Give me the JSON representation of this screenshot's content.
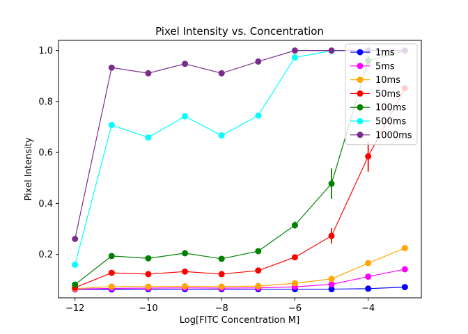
{
  "chart_data": {
    "type": "line",
    "title": "Pixel Intensity vs. Concentration",
    "xlabel": "Log[FITC Concentration M]",
    "ylabel": "Pixel Intensity",
    "xlim": [
      -12.45,
      -2.55
    ],
    "ylim": [
      0.03,
      1.04
    ],
    "xticks": [
      -12,
      -10,
      -8,
      -6,
      -4
    ],
    "yticks": [
      0.2,
      0.4,
      0.6,
      0.8,
      1.0
    ],
    "xtick_labels": [
      "−12",
      "−10",
      "−8",
      "−6",
      "−4"
    ],
    "ytick_labels": [
      "0.2",
      "0.4",
      "0.6",
      "0.8",
      "1.0"
    ],
    "grid": false,
    "legend_position": "top-right",
    "x": [
      -12,
      -11,
      -10,
      -9,
      -8,
      -7,
      -6,
      -5,
      -4,
      -3
    ],
    "series": [
      {
        "name": "1ms",
        "color": "#0000ff",
        "values": [
          0.063,
          0.063,
          0.064,
          0.064,
          0.064,
          0.064,
          0.064,
          0.064,
          0.066,
          0.072
        ],
        "errors": [
          0.002,
          0.002,
          0.002,
          0.002,
          0.002,
          0.002,
          0.002,
          0.002,
          0.002,
          0.003
        ]
      },
      {
        "name": "5ms",
        "color": "#ff00ff",
        "values": [
          0.064,
          0.067,
          0.068,
          0.069,
          0.068,
          0.069,
          0.073,
          0.083,
          0.113,
          0.142
        ],
        "errors": [
          0.002,
          0.002,
          0.002,
          0.002,
          0.002,
          0.002,
          0.003,
          0.003,
          0.004,
          0.005
        ]
      },
      {
        "name": "10ms",
        "color": "#ffa500",
        "values": [
          0.066,
          0.074,
          0.074,
          0.075,
          0.074,
          0.076,
          0.087,
          0.104,
          0.166,
          0.225
        ],
        "errors": [
          0.002,
          0.002,
          0.002,
          0.002,
          0.002,
          0.002,
          0.003,
          0.004,
          0.005,
          0.006
        ]
      },
      {
        "name": "50ms",
        "color": "#ff0000",
        "values": [
          0.07,
          0.128,
          0.123,
          0.133,
          0.123,
          0.137,
          0.189,
          0.273,
          0.585,
          0.852
        ],
        "errors": [
          0.003,
          0.004,
          0.004,
          0.004,
          0.004,
          0.004,
          0.006,
          0.03,
          0.06,
          0.01
        ]
      },
      {
        "name": "100ms",
        "color": "#008000",
        "values": [
          0.082,
          0.194,
          0.185,
          0.205,
          0.183,
          0.213,
          0.315,
          0.478,
          0.96,
          0.999
        ],
        "errors": [
          0.003,
          0.005,
          0.005,
          0.005,
          0.005,
          0.005,
          0.014,
          0.06,
          0.02,
          0.002
        ]
      },
      {
        "name": "500ms",
        "color": "#00ffff",
        "values": [
          0.16,
          0.708,
          0.659,
          0.742,
          0.667,
          0.745,
          0.973,
          0.999,
          1.0,
          1.0
        ],
        "errors": [
          0.005,
          0.006,
          0.006,
          0.006,
          0.006,
          0.006,
          0.01,
          0.002,
          0.002,
          0.002
        ]
      },
      {
        "name": "1000ms",
        "color": "#7b2d8b",
        "values": [
          0.261,
          0.933,
          0.911,
          0.948,
          0.911,
          0.957,
          1.0,
          1.0,
          1.0,
          1.0
        ],
        "errors": [
          0.005,
          0.006,
          0.006,
          0.006,
          0.006,
          0.006,
          0.002,
          0.002,
          0.002,
          0.002
        ]
      }
    ]
  }
}
